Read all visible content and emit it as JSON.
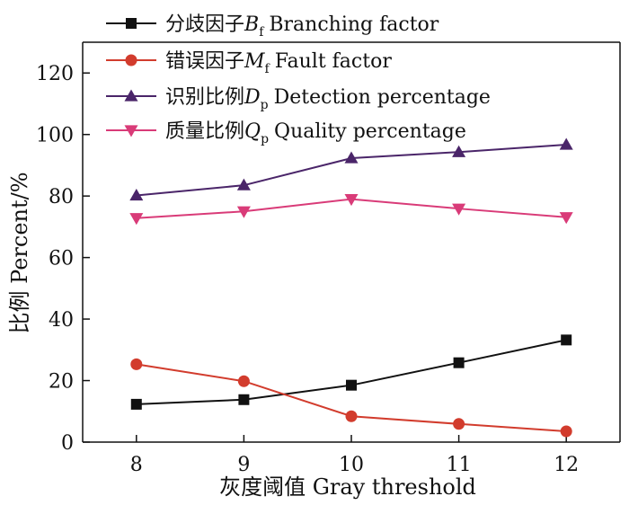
{
  "chart_data": {
    "type": "line",
    "title": "",
    "xlabel": "灰度阈值 Gray threshold",
    "ylabel": "比例 Percent/%",
    "x": [
      8,
      9,
      10,
      11,
      12
    ],
    "xlim": [
      7.5,
      12.5
    ],
    "ylim": [
      0,
      130
    ],
    "yticks": [
      0,
      20,
      40,
      60,
      80,
      100,
      120
    ],
    "xticks": [
      8,
      9,
      10,
      11,
      12
    ],
    "grid": false,
    "legend_position": "top-left",
    "series": [
      {
        "name": "分歧因子B_f Branching factor",
        "legend_prefix": "分歧因子",
        "legend_symbol": "B",
        "legend_subscript": "f",
        "legend_suffix": "Branching factor",
        "marker": "square",
        "color": "#111111",
        "values": [
          12.3,
          13.8,
          18.5,
          25.8,
          33.2
        ]
      },
      {
        "name": "错误因子M_f Fault factor",
        "legend_prefix": "错误因子",
        "legend_symbol": "M",
        "legend_subscript": "f",
        "legend_suffix": "Fault factor",
        "marker": "circle",
        "color": "#d23c2d",
        "values": [
          25.3,
          19.8,
          8.4,
          5.9,
          3.5
        ]
      },
      {
        "name": "识别比例D_p Detection percentage",
        "legend_prefix": "识别比例",
        "legend_symbol": "D",
        "legend_subscript": "p",
        "legend_suffix": "Detection percentage",
        "marker": "triangle-up",
        "color": "#4a2569",
        "values": [
          80.2,
          83.5,
          92.3,
          94.3,
          96.7
        ]
      },
      {
        "name": "质量比例Q_p Quality percentage",
        "legend_prefix": "质量比例",
        "legend_symbol": "Q",
        "legend_subscript": "p",
        "legend_suffix": "Quality percentage",
        "marker": "triangle-down",
        "color": "#d93b78",
        "values": [
          72.8,
          75.0,
          79.0,
          75.9,
          73.1
        ]
      }
    ]
  }
}
